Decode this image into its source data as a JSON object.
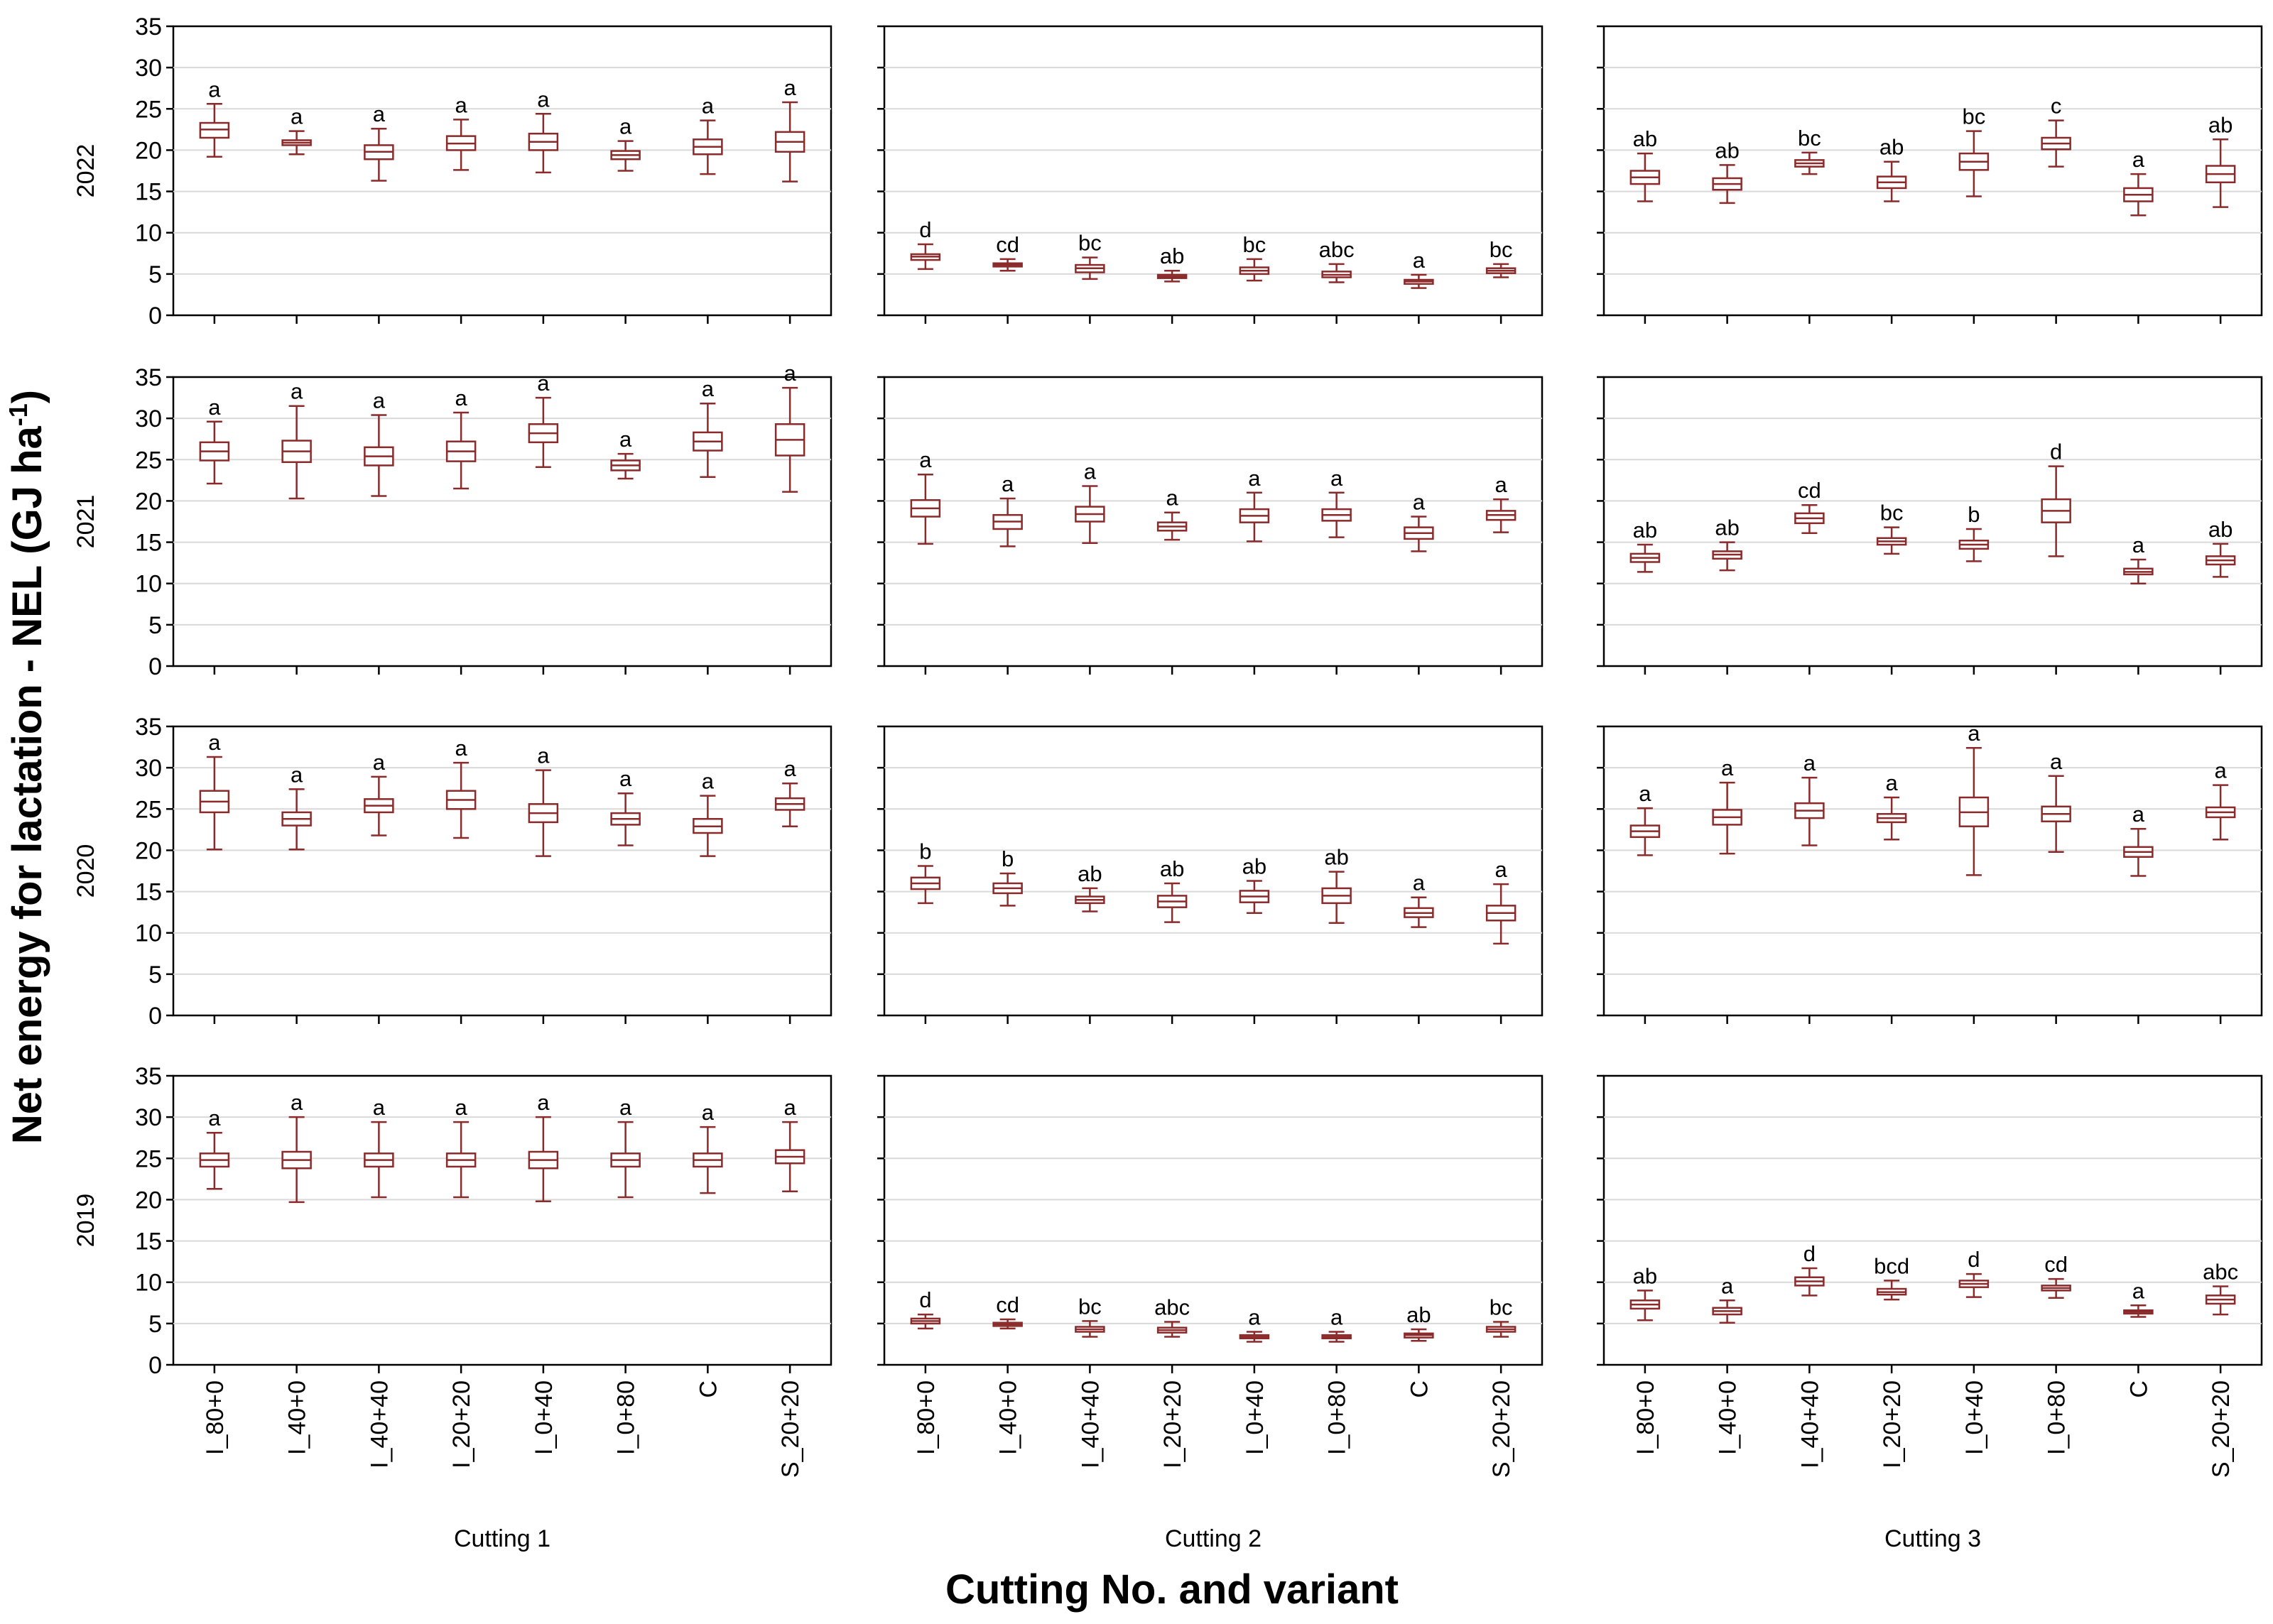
{
  "chart_data": {
    "type": "boxplot",
    "ylabel": "Net energy for lactation - NEL (GJ ha",
    "ylabel_sup": "-1",
    "ylabel_end": ")",
    "xlabel": "Cutting No. and variant",
    "ylim": [
      0,
      35
    ],
    "yticks": [
      "0",
      "5",
      "10",
      "15",
      "20",
      "25",
      "30",
      "35"
    ],
    "categories": [
      "I_80+0",
      "I_40+0",
      "I_40+40",
      "I_20+20",
      "I_0+40",
      "I_0+80",
      "C",
      "S_20+20"
    ],
    "cuttings": [
      "Cutting 1",
      "Cutting 2",
      "Cutting 3"
    ],
    "years": [
      "2022",
      "2021",
      "2020",
      "2019"
    ],
    "panels": [
      [
        {
          "boxes": [
            [
              19.2,
              21.5,
              22.5,
              23.3,
              25.6
            ],
            [
              19.5,
              20.6,
              20.9,
              21.2,
              22.3
            ],
            [
              16.3,
              18.9,
              19.8,
              20.6,
              22.6
            ],
            [
              17.6,
              20.0,
              20.8,
              21.7,
              23.7
            ],
            [
              17.3,
              20.0,
              21.0,
              22.0,
              24.4
            ],
            [
              17.5,
              18.9,
              19.4,
              19.9,
              21.1
            ],
            [
              17.1,
              19.5,
              20.4,
              21.3,
              23.6
            ],
            [
              16.2,
              19.8,
              21.0,
              22.2,
              25.8
            ]
          ],
          "letters": [
            "a",
            "a",
            "a",
            "a",
            "a",
            "a",
            "a",
            "a"
          ]
        },
        {
          "boxes": [
            [
              5.6,
              6.7,
              7.1,
              7.4,
              8.6
            ],
            [
              5.4,
              5.9,
              6.1,
              6.3,
              6.8
            ],
            [
              4.4,
              5.2,
              5.7,
              6.1,
              7.0
            ],
            [
              4.1,
              4.5,
              4.7,
              4.9,
              5.4
            ],
            [
              4.2,
              5.0,
              5.4,
              5.8,
              6.8
            ],
            [
              4.0,
              4.6,
              4.9,
              5.3,
              6.2
            ],
            [
              3.3,
              3.8,
              4.1,
              4.3,
              4.9
            ],
            [
              4.6,
              5.1,
              5.4,
              5.7,
              6.2
            ]
          ],
          "letters": [
            "d",
            "cd",
            "bc",
            "ab",
            "bc",
            "abc",
            "a",
            "bc"
          ]
        },
        {
          "boxes": [
            [
              13.8,
              15.9,
              16.7,
              17.5,
              19.6
            ],
            [
              13.6,
              15.2,
              15.9,
              16.6,
              18.2
            ],
            [
              17.1,
              18.0,
              18.4,
              18.8,
              19.7
            ],
            [
              13.8,
              15.4,
              16.1,
              16.8,
              18.6
            ],
            [
              14.4,
              17.6,
              18.6,
              19.6,
              22.3
            ],
            [
              18.0,
              20.1,
              20.8,
              21.5,
              23.6
            ],
            [
              12.1,
              13.8,
              14.6,
              15.4,
              17.1
            ],
            [
              13.1,
              16.1,
              17.1,
              18.1,
              21.3
            ]
          ],
          "letters": [
            "ab",
            "ab",
            "bc",
            "ab",
            "bc",
            "c",
            "a",
            "ab"
          ]
        }
      ],
      [
        {
          "boxes": [
            [
              22.1,
              24.9,
              26.0,
              27.1,
              29.6
            ],
            [
              20.3,
              24.7,
              26.0,
              27.3,
              31.5
            ],
            [
              20.6,
              24.3,
              25.4,
              26.5,
              30.4
            ],
            [
              21.5,
              24.8,
              26.0,
              27.2,
              30.7
            ],
            [
              24.1,
              27.1,
              28.2,
              29.3,
              32.5
            ],
            [
              22.7,
              23.7,
              24.3,
              24.9,
              25.7
            ],
            [
              22.9,
              26.1,
              27.2,
              28.3,
              31.8
            ],
            [
              21.1,
              25.5,
              27.4,
              29.3,
              33.7
            ]
          ],
          "letters": [
            "a",
            "a",
            "a",
            "a",
            "a",
            "a",
            "a",
            "a"
          ]
        },
        {
          "boxes": [
            [
              14.8,
              18.1,
              19.1,
              20.1,
              23.2
            ],
            [
              14.5,
              16.6,
              17.5,
              18.3,
              20.3
            ],
            [
              14.9,
              17.5,
              18.4,
              19.3,
              21.8
            ],
            [
              15.3,
              16.4,
              16.9,
              17.4,
              18.6
            ],
            [
              15.1,
              17.4,
              18.2,
              19.0,
              21.0
            ],
            [
              15.6,
              17.6,
              18.3,
              19.0,
              21.0
            ],
            [
              13.9,
              15.4,
              16.1,
              16.8,
              18.1
            ],
            [
              16.2,
              17.7,
              18.3,
              18.8,
              20.2
            ]
          ],
          "letters": [
            "a",
            "a",
            "a",
            "a",
            "a",
            "a",
            "a",
            "a"
          ]
        },
        {
          "boxes": [
            [
              11.4,
              12.6,
              13.1,
              13.6,
              14.7
            ],
            [
              11.6,
              13.0,
              13.5,
              13.9,
              15.0
            ],
            [
              16.1,
              17.3,
              17.9,
              18.5,
              19.5
            ],
            [
              13.6,
              14.7,
              15.1,
              15.5,
              16.8
            ],
            [
              12.7,
              14.2,
              14.7,
              15.2,
              16.6
            ],
            [
              13.3,
              17.4,
              18.8,
              20.2,
              24.2
            ],
            [
              10.0,
              11.1,
              11.4,
              11.8,
              12.9
            ],
            [
              10.8,
              12.3,
              12.8,
              13.3,
              14.8
            ]
          ],
          "letters": [
            "ab",
            "ab",
            "cd",
            "bc",
            "b",
            "d",
            "a",
            "ab"
          ]
        }
      ],
      [
        {
          "boxes": [
            [
              20.1,
              24.6,
              25.9,
              27.2,
              31.3
            ],
            [
              20.1,
              23.0,
              23.8,
              24.6,
              27.4
            ],
            [
              21.8,
              24.6,
              25.4,
              26.2,
              28.9
            ],
            [
              21.5,
              25.0,
              26.1,
              27.2,
              30.6
            ],
            [
              19.3,
              23.4,
              24.5,
              25.6,
              29.7
            ],
            [
              20.6,
              23.1,
              23.8,
              24.5,
              26.9
            ],
            [
              19.3,
              22.1,
              22.9,
              23.8,
              26.6
            ],
            [
              22.9,
              24.9,
              25.6,
              26.3,
              28.1
            ]
          ],
          "letters": [
            "a",
            "a",
            "a",
            "a",
            "a",
            "a",
            "a",
            "a"
          ]
        },
        {
          "boxes": [
            [
              13.6,
              15.3,
              16.0,
              16.7,
              18.1
            ],
            [
              13.3,
              14.8,
              15.4,
              16.0,
              17.2
            ],
            [
              12.6,
              13.6,
              14.0,
              14.4,
              15.4
            ],
            [
              11.3,
              13.1,
              13.8,
              14.5,
              16.0
            ],
            [
              12.4,
              13.7,
              14.4,
              15.1,
              16.3
            ],
            [
              11.2,
              13.6,
              14.5,
              15.4,
              17.4
            ],
            [
              10.7,
              11.9,
              12.4,
              13.0,
              14.3
            ],
            [
              8.7,
              11.5,
              12.4,
              13.3,
              15.9
            ]
          ],
          "letters": [
            "b",
            "b",
            "ab",
            "ab",
            "ab",
            "ab",
            "a",
            "a"
          ]
        },
        {
          "boxes": [
            [
              19.4,
              21.6,
              22.3,
              23.0,
              25.1
            ],
            [
              19.6,
              23.1,
              24.0,
              24.9,
              28.2
            ],
            [
              20.6,
              23.9,
              24.8,
              25.7,
              28.8
            ],
            [
              21.3,
              23.4,
              23.9,
              24.4,
              26.4
            ],
            [
              17.0,
              22.9,
              24.6,
              26.4,
              32.4
            ],
            [
              19.8,
              23.5,
              24.4,
              25.3,
              29.0
            ],
            [
              16.9,
              19.2,
              19.8,
              20.4,
              22.6
            ],
            [
              21.3,
              24.0,
              24.6,
              25.2,
              27.9
            ]
          ],
          "letters": [
            "a",
            "a",
            "a",
            "a",
            "a",
            "a",
            "a",
            "a"
          ]
        }
      ],
      [
        {
          "boxes": [
            [
              21.3,
              24.0,
              24.8,
              25.6,
              28.1
            ],
            [
              19.7,
              23.8,
              24.8,
              25.8,
              30.0
            ],
            [
              20.3,
              24.0,
              24.8,
              25.6,
              29.4
            ],
            [
              20.3,
              24.0,
              24.8,
              25.6,
              29.4
            ],
            [
              19.8,
              23.8,
              24.8,
              25.8,
              30.0
            ],
            [
              20.3,
              24.0,
              24.8,
              25.6,
              29.4
            ],
            [
              20.8,
              24.0,
              24.8,
              25.6,
              28.8
            ],
            [
              21.0,
              24.4,
              25.2,
              26.0,
              29.4
            ]
          ],
          "letters": [
            "a",
            "a",
            "a",
            "a",
            "a",
            "a",
            "a",
            "a"
          ]
        },
        {
          "boxes": [
            [
              4.4,
              5.0,
              5.3,
              5.6,
              6.1
            ],
            [
              4.4,
              4.7,
              4.9,
              5.1,
              5.5
            ],
            [
              3.4,
              4.0,
              4.3,
              4.6,
              5.3
            ],
            [
              3.4,
              3.9,
              4.2,
              4.5,
              5.2
            ],
            [
              2.8,
              3.2,
              3.4,
              3.6,
              4.0
            ],
            [
              2.8,
              3.2,
              3.4,
              3.6,
              4.0
            ],
            [
              2.9,
              3.3,
              3.6,
              3.8,
              4.3
            ],
            [
              3.4,
              4.0,
              4.3,
              4.6,
              5.2
            ]
          ],
          "letters": [
            "d",
            "cd",
            "bc",
            "abc",
            "a",
            "a",
            "ab",
            "bc"
          ]
        },
        {
          "boxes": [
            [
              5.4,
              6.8,
              7.3,
              7.8,
              9.0
            ],
            [
              5.1,
              6.1,
              6.5,
              6.9,
              7.8
            ],
            [
              8.4,
              9.6,
              10.1,
              10.6,
              11.7
            ],
            [
              7.9,
              8.5,
              8.8,
              9.2,
              10.2
            ],
            [
              8.2,
              9.4,
              9.8,
              10.2,
              11.0
            ],
            [
              8.1,
              9.0,
              9.3,
              9.6,
              10.4
            ],
            [
              5.8,
              6.2,
              6.4,
              6.6,
              7.2
            ],
            [
              6.1,
              7.4,
              7.9,
              8.4,
              9.5
            ]
          ],
          "letters": [
            "ab",
            "a",
            "d",
            "bcd",
            "d",
            "cd",
            "a",
            "abc"
          ]
        }
      ]
    ]
  }
}
